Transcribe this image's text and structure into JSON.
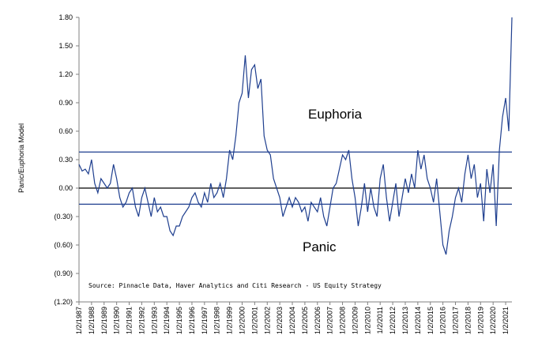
{
  "chart_data": {
    "type": "line",
    "y_label": "Panic/Euphoria Model",
    "annotations": [
      "Euphoria",
      "Panic",
      "Source:  Pinnacle Data, Haver Analytics and Citi Research - US Equity Strategy"
    ],
    "categories": [
      "1/2/1987",
      null,
      null,
      null,
      "1/2/1988",
      null,
      null,
      null,
      "1/2/1989",
      null,
      null,
      null,
      "1/2/1990",
      null,
      null,
      null,
      "1/2/1991",
      null,
      null,
      null,
      "1/2/1992",
      null,
      null,
      null,
      "1/2/1993",
      null,
      null,
      null,
      "1/2/1994",
      null,
      null,
      null,
      "1/2/1995",
      null,
      null,
      null,
      "1/2/1996",
      null,
      null,
      null,
      "1/2/1997",
      null,
      null,
      null,
      "1/2/1998",
      null,
      null,
      null,
      "1/2/1999",
      null,
      null,
      null,
      "1/2/2000",
      null,
      null,
      null,
      "1/2/2001",
      null,
      null,
      null,
      "1/2/2002",
      null,
      null,
      null,
      "1/2/2003",
      null,
      null,
      null,
      "1/2/2004",
      null,
      null,
      null,
      "1/2/2005",
      null,
      null,
      null,
      "1/2/2006",
      null,
      null,
      null,
      "1/2/2007",
      null,
      null,
      null,
      "1/2/2008",
      null,
      null,
      null,
      "1/2/2009",
      null,
      null,
      null,
      "1/2/2010",
      null,
      null,
      null,
      "1/2/2011",
      null,
      null,
      null,
      "1/2/2012",
      null,
      null,
      null,
      "1/2/2013",
      null,
      null,
      null,
      "1/2/2014",
      null,
      null,
      null,
      "1/2/2015",
      null,
      null,
      null,
      "1/2/2016",
      null,
      null,
      null,
      "1/2/2017",
      null,
      null,
      null,
      "1/2/2018",
      null,
      null,
      null,
      "1/2/2019",
      null,
      null,
      null,
      "1/2/2020",
      null,
      null,
      null,
      "1/2/2021",
      null,
      null
    ],
    "series": [
      {
        "name": "Panic/Euphoria Model",
        "color": "#1f3f8f",
        "values": [
          0.25,
          0.18,
          0.2,
          0.15,
          0.3,
          0.05,
          -0.05,
          0.1,
          0.05,
          0.0,
          0.05,
          0.25,
          0.1,
          -0.1,
          -0.2,
          -0.15,
          -0.05,
          0.0,
          -0.2,
          -0.3,
          -0.1,
          0.0,
          -0.15,
          -0.3,
          -0.1,
          -0.25,
          -0.2,
          -0.3,
          -0.3,
          -0.45,
          -0.5,
          -0.4,
          -0.4,
          -0.3,
          -0.25,
          -0.2,
          -0.1,
          -0.05,
          -0.15,
          -0.2,
          -0.05,
          -0.15,
          0.05,
          -0.1,
          -0.05,
          0.05,
          -0.1,
          0.1,
          0.4,
          0.3,
          0.55,
          0.9,
          1.0,
          1.4,
          0.95,
          1.25,
          1.3,
          1.05,
          1.15,
          0.55,
          0.4,
          0.35,
          0.1,
          0.0,
          -0.1,
          -0.3,
          -0.2,
          -0.1,
          -0.2,
          -0.1,
          -0.15,
          -0.25,
          -0.2,
          -0.35,
          -0.15,
          -0.2,
          -0.25,
          -0.1,
          -0.3,
          -0.4,
          -0.2,
          0.0,
          0.05,
          0.2,
          0.35,
          0.3,
          0.4,
          0.1,
          -0.1,
          -0.4,
          -0.2,
          0.05,
          -0.25,
          0.0,
          -0.2,
          -0.3,
          0.1,
          0.25,
          -0.1,
          -0.35,
          -0.15,
          0.05,
          -0.3,
          -0.1,
          0.1,
          -0.05,
          0.15,
          0.0,
          0.4,
          0.2,
          0.35,
          0.1,
          0.0,
          -0.15,
          0.1,
          -0.25,
          -0.6,
          -0.7,
          -0.45,
          -0.3,
          -0.1,
          0.0,
          -0.15,
          0.15,
          0.35,
          0.1,
          0.25,
          -0.1,
          0.05,
          -0.35,
          0.2,
          -0.05,
          0.25,
          -0.4,
          0.4,
          0.75,
          0.95,
          0.6,
          1.8
        ]
      }
    ],
    "thresholds": [
      {
        "value": 0.38,
        "color": "#1f3f8f"
      },
      {
        "value": -0.17,
        "color": "#1f3f8f"
      },
      {
        "value": 0,
        "color": "#000000"
      }
    ],
    "ylim": [
      -1.2,
      1.8
    ],
    "yticks": [
      {
        "value": -1.2,
        "label": "(1.20)"
      },
      {
        "value": -0.9,
        "label": "(0.90)"
      },
      {
        "value": -0.6,
        "label": "(0.60)"
      },
      {
        "value": -0.3,
        "label": "(0.30)"
      },
      {
        "value": 0,
        "label": "0.00"
      },
      {
        "value": 0.3,
        "label": "0.30"
      },
      {
        "value": 0.6,
        "label": "0.60"
      },
      {
        "value": 0.9,
        "label": "0.90"
      },
      {
        "value": 1.2,
        "label": "1.20"
      },
      {
        "value": 1.5,
        "label": "1.50"
      },
      {
        "value": 1.8,
        "label": "1.80"
      }
    ],
    "grid": false
  }
}
